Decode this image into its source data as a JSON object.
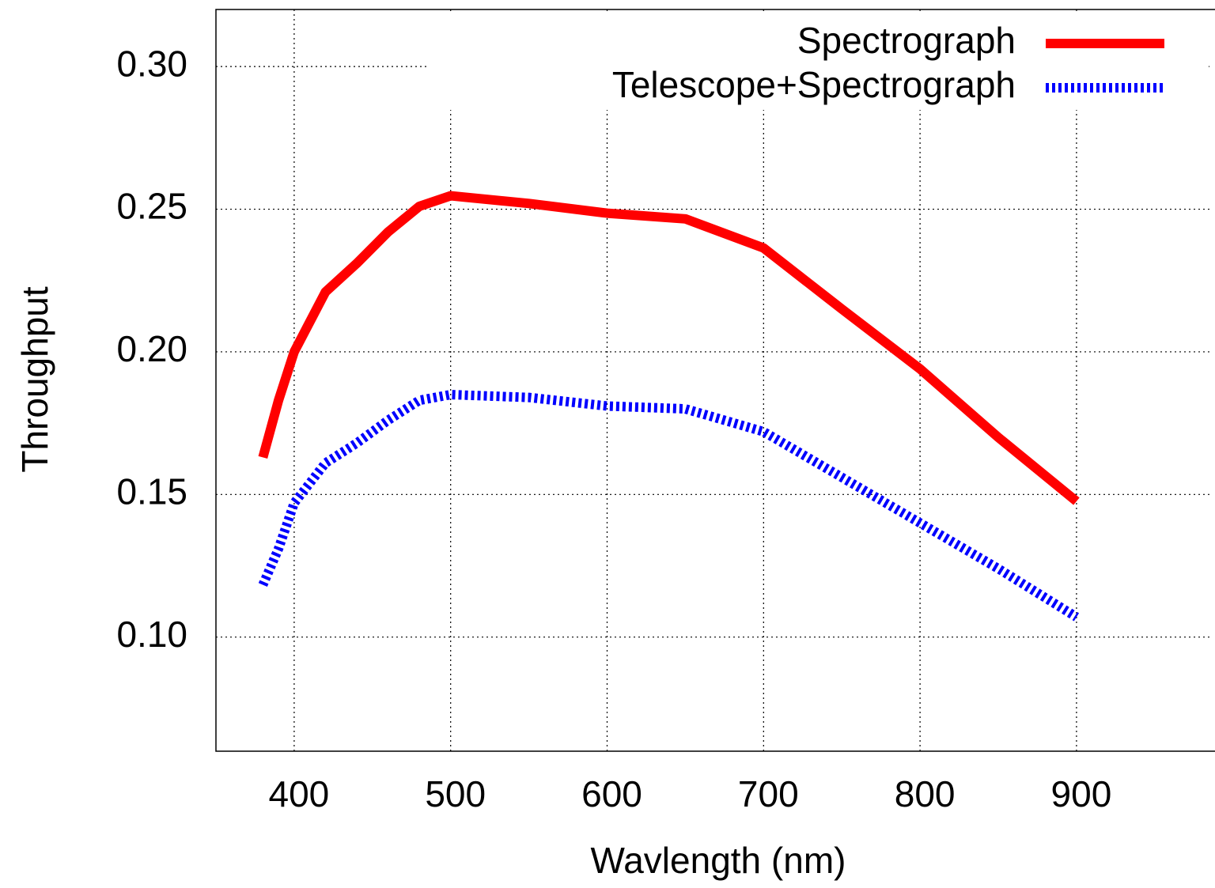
{
  "chart_data": {
    "type": "line",
    "x_label": "Wavlength (nm)",
    "y_label": "Throughput",
    "x": [
      380,
      390,
      400,
      420,
      440,
      460,
      480,
      500,
      550,
      600,
      650,
      700,
      750,
      800,
      850,
      900
    ],
    "series": [
      {
        "name": "Spectrograph",
        "color": "#ff0000",
        "style": "solid",
        "values": [
          0.163,
          0.183,
          0.2,
          0.221,
          0.231,
          0.242,
          0.251,
          0.2547,
          0.252,
          0.2486,
          0.2466,
          0.2364,
          0.215,
          0.194,
          0.17,
          0.1476
        ]
      },
      {
        "name": "Telescope+Spectrograph",
        "color": "#0000ff",
        "style": "dotted",
        "values": [
          0.1183,
          0.131,
          0.147,
          0.161,
          0.168,
          0.176,
          0.183,
          0.185,
          0.184,
          0.181,
          0.18,
          0.172,
          0.156,
          0.14,
          0.124,
          0.107
        ]
      }
    ],
    "xlim": [
      350,
      987
    ],
    "ylim": [
      0.06,
      0.32
    ],
    "xticks": [
      400,
      500,
      600,
      700,
      800,
      900
    ],
    "yticks": [
      {
        "value": 0.1,
        "label": "0.10"
      },
      {
        "value": 0.15,
        "label": "0.15"
      },
      {
        "value": 0.2,
        "label": "0.20"
      },
      {
        "value": 0.25,
        "label": "0.25"
      },
      {
        "value": 0.3,
        "label": "0.30"
      }
    ],
    "grid": true,
    "legend": "top-right"
  }
}
